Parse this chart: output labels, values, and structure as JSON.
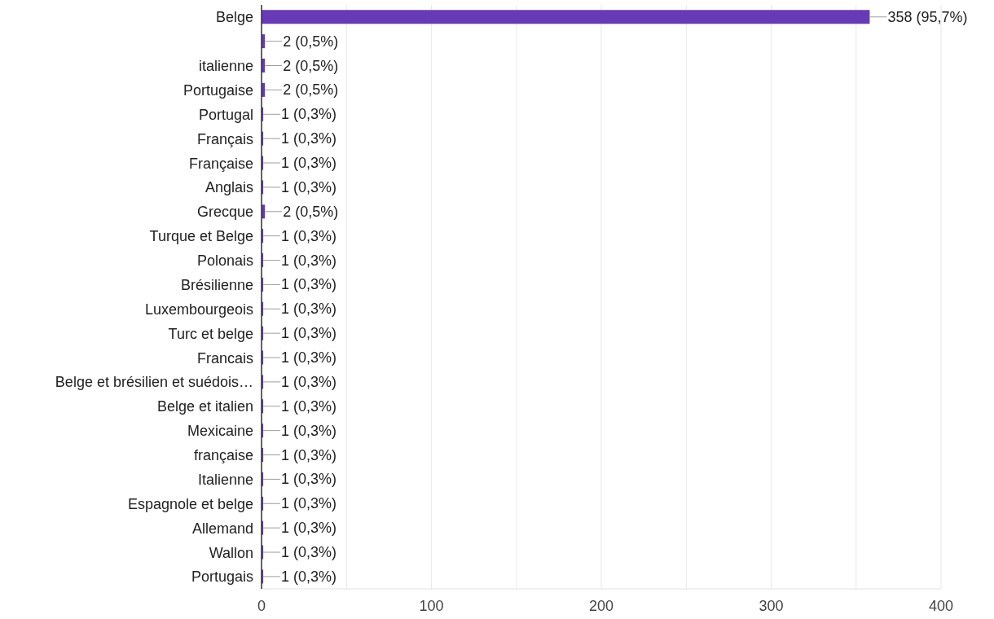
{
  "chart_data": {
    "type": "bar",
    "orientation": "horizontal",
    "categories": [
      "Belge",
      null,
      "italienne",
      "Portugaise",
      "Portugal",
      "Français",
      "Française",
      "Anglais",
      "Grecque",
      "Turque et Belge",
      "Polonais",
      "Brésilienne",
      "Luxembourgeois",
      "Turc et belge",
      "Francais",
      "Belge et brésilien et suédois…",
      "Belge et italien",
      "Mexicaine",
      "française",
      "Italienne",
      "Espagnole et belge",
      "Allemand",
      "Wallon",
      "Portugais"
    ],
    "values": [
      358,
      2,
      2,
      2,
      1,
      1,
      1,
      1,
      2,
      1,
      1,
      1,
      1,
      1,
      1,
      1,
      1,
      1,
      1,
      1,
      1,
      1,
      1,
      1
    ],
    "value_labels": [
      "358 (95,7%)",
      "2 (0,5%)",
      "2 (0,5%)",
      "2 (0,5%)",
      "1 (0,3%)",
      "1 (0,3%)",
      "1 (0,3%)",
      "1 (0,3%)",
      "2 (0,5%)",
      "1 (0,3%)",
      "1 (0,3%)",
      "1 (0,3%)",
      "1 (0,3%)",
      "1 (0,3%)",
      "1 (0,3%)",
      "1 (0,3%)",
      "1 (0,3%)",
      "1 (0,3%)",
      "1 (0,3%)",
      "1 (0,3%)",
      "1 (0,3%)",
      "1 (0,3%)",
      "1 (0,3%)",
      "1 (0,3%)"
    ],
    "color": "#673ab7",
    "xlim": [
      0,
      400
    ],
    "xticks": [
      0,
      {
        "value": 50,
        "label": null
      },
      100,
      {
        "value": 150,
        "label": null
      },
      200,
      {
        "value": 250,
        "label": null
      },
      300,
      {
        "value": 350,
        "label": null
      },
      400
    ],
    "grid": "x"
  }
}
